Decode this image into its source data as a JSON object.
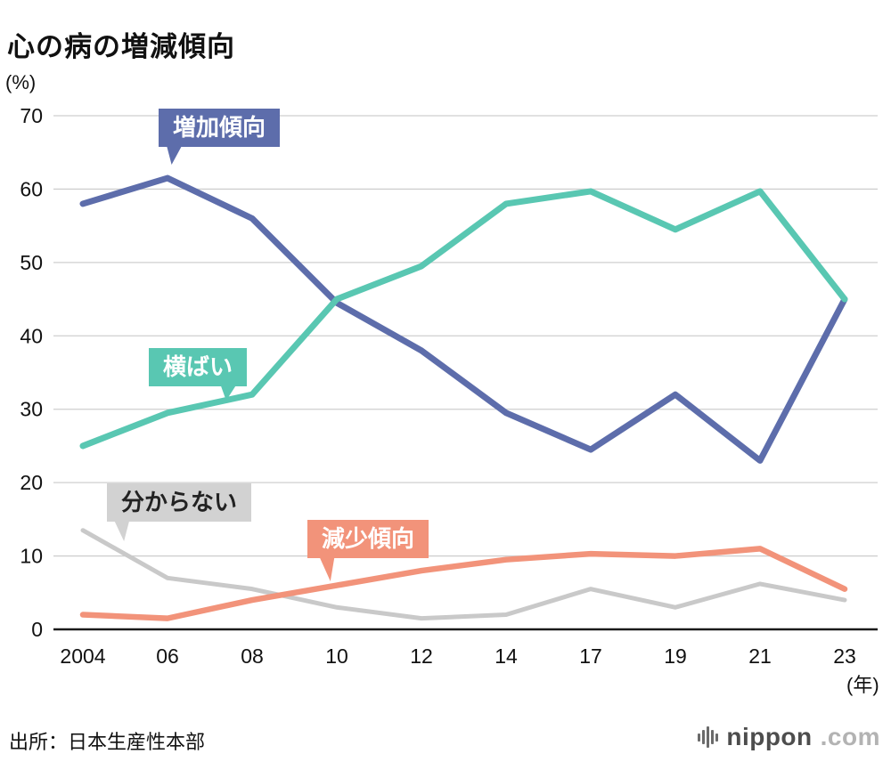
{
  "page": {
    "y_axis_unit": "(%)",
    "x_axis_unit": "(年)",
    "source": "出所：日本生産性本部",
    "logo": {
      "icon": "soundwave-bars-icon",
      "name": "nippon",
      "tld": ".com"
    }
  },
  "chart_data": {
    "type": "line",
    "title": "心の病の増減傾向",
    "categories": [
      "2004",
      "06",
      "08",
      "10",
      "12",
      "14",
      "17",
      "19",
      "21",
      "23"
    ],
    "xlabel": "(年)",
    "ylabel": "(%)",
    "ylim": [
      0,
      70
    ],
    "y_ticks": [
      0,
      10,
      20,
      30,
      40,
      50,
      60,
      70
    ],
    "grid": true,
    "legend": "inline-callout-labels",
    "series": [
      {
        "name": "増加傾向",
        "color": "#5d6dab",
        "width": 7,
        "values": [
          58,
          61.5,
          56,
          44.5,
          38,
          29.5,
          24.5,
          32,
          23,
          45
        ]
      },
      {
        "name": "横ばい",
        "color": "#59c7b2",
        "width": 7,
        "values": [
          25,
          29.5,
          32,
          45,
          49.5,
          58,
          59.7,
          54.5,
          59.7,
          45
        ]
      },
      {
        "name": "分からない",
        "color": "#c9c9c9",
        "width": 5,
        "values": [
          13.5,
          7,
          5.5,
          3,
          1.5,
          2,
          5.5,
          3,
          6.2,
          4
        ]
      },
      {
        "name": "減少傾向",
        "color": "#f2937a",
        "width": 6.5,
        "values": [
          2,
          1.5,
          4,
          6,
          8,
          9.5,
          10.3,
          10,
          11,
          5.5
        ]
      }
    ]
  }
}
